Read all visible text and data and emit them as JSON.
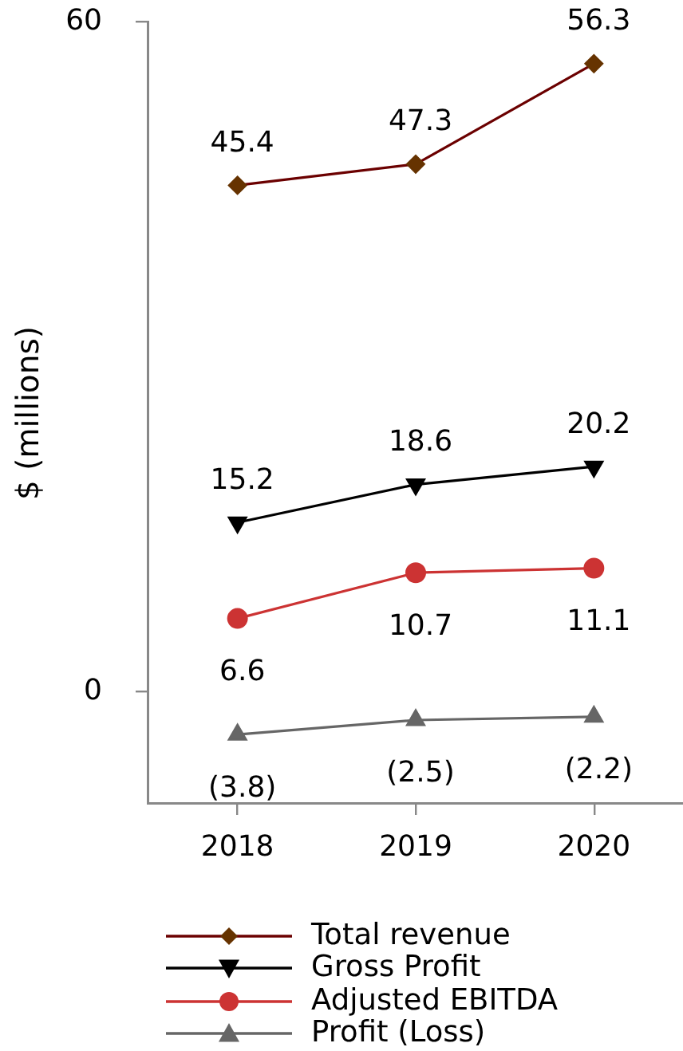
{
  "chart_data": {
    "type": "line",
    "ylabel": "$ (millions)",
    "categories": [
      "2018",
      "2019",
      "2020"
    ],
    "ylim": [
      -10,
      60
    ],
    "yticks": [
      0,
      60
    ],
    "grid": false,
    "legend": "bottom",
    "series": [
      {
        "name": "Total revenue",
        "color": "#6b0000",
        "colors": [
          "#663300",
          "#663300",
          "#663300"
        ],
        "marker": "diamond",
        "values": [
          45.4,
          47.3,
          56.3
        ],
        "value_labels": [
          "45.4",
          "47.3",
          "56.3"
        ]
      },
      {
        "name": "Gross Profit",
        "color": "#000000",
        "marker": "triangle-down",
        "values": [
          15.2,
          18.6,
          20.2
        ],
        "value_labels": [
          "15.2",
          "18.6",
          "20.2"
        ]
      },
      {
        "name": "Adjusted EBITDA",
        "color": "#cc3333",
        "marker": "circle",
        "values": [
          6.6,
          10.7,
          11.1
        ],
        "value_labels": [
          "6.6",
          "10.7",
          "11.1"
        ]
      },
      {
        "name": "Profit (Loss)",
        "color": "#666666",
        "marker": "triangle",
        "values": [
          -3.8,
          -2.5,
          -2.2
        ],
        "value_labels": [
          "(3.8)",
          "(2.5)",
          "(2.2)"
        ]
      }
    ]
  }
}
